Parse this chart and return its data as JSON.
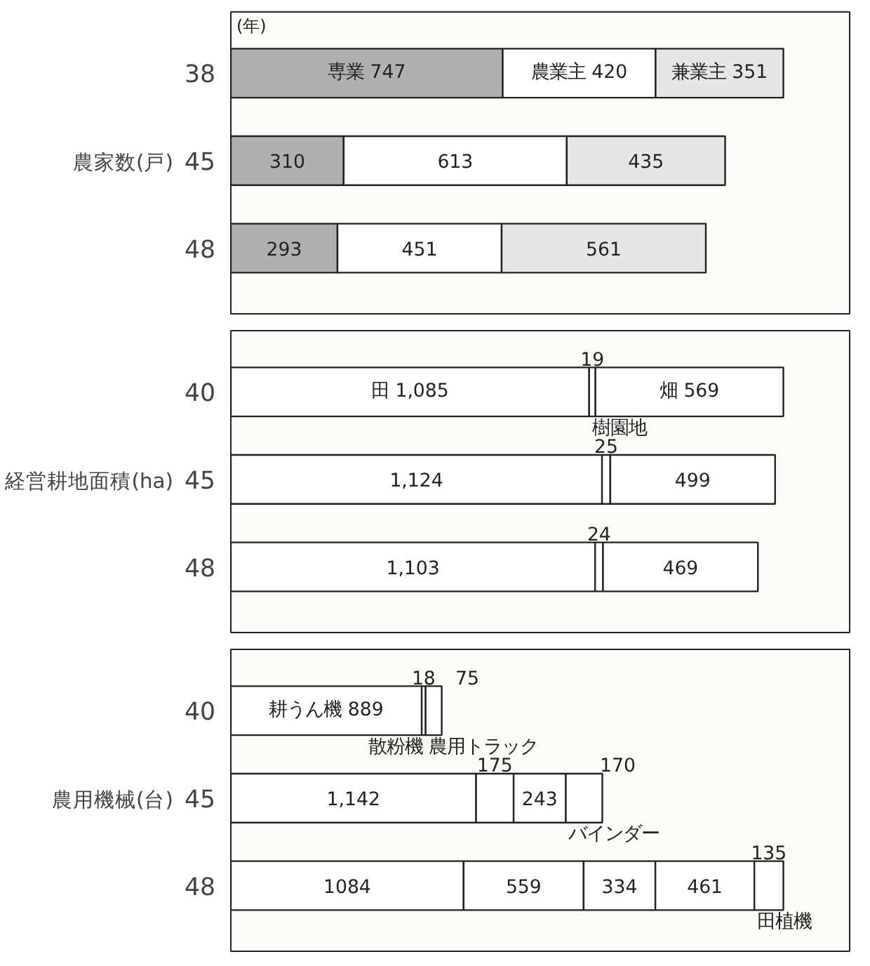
{
  "chart_data": [
    {
      "type": "bar",
      "orientation": "horizontal",
      "stacked": true,
      "ylabel": "農家数(戸)",
      "annotations": [
        "(年)"
      ],
      "categories": [
        "38",
        "45",
        "48"
      ],
      "series": [
        {
          "name": "専業",
          "color": "#b0b0b0",
          "values": [
            747,
            310,
            293
          ],
          "value_labels": [
            "747",
            "310",
            "293"
          ]
        },
        {
          "name": "農業主",
          "color": "#ffffff",
          "values": [
            420,
            613,
            451
          ],
          "value_labels": [
            "420",
            "613",
            "451"
          ]
        },
        {
          "name": "兼業主",
          "color": "#e6e6e6",
          "values": [
            351,
            435,
            561
          ],
          "value_labels": [
            "351",
            "435",
            "561"
          ]
        }
      ]
    },
    {
      "type": "bar",
      "orientation": "horizontal",
      "stacked": true,
      "ylabel": "経営耕地面積(ha)",
      "categories": [
        "40",
        "45",
        "48"
      ],
      "series": [
        {
          "name": "田",
          "color": "#ffffff",
          "values": [
            1085,
            1124,
            1103
          ],
          "value_labels": [
            "1,085",
            "1,124",
            "1,103"
          ]
        },
        {
          "name": "樹園地",
          "color": "#ffffff",
          "values": [
            19,
            25,
            24
          ],
          "value_labels": [
            "19",
            "25",
            "24"
          ]
        },
        {
          "name": "畑",
          "color": "#ffffff",
          "values": [
            569,
            499,
            469
          ],
          "value_labels": [
            "569",
            "499",
            "469"
          ]
        }
      ]
    },
    {
      "type": "bar",
      "orientation": "horizontal",
      "stacked": true,
      "ylabel": "農用機械(台)",
      "categories": [
        "40",
        "45",
        "48"
      ],
      "series": [
        {
          "name": "耕うん機",
          "color": "#ffffff",
          "values": [
            889,
            1142,
            1084
          ],
          "value_labels": [
            "889",
            "1,142",
            "1084"
          ]
        },
        {
          "name": "散粉機",
          "color": "#ffffff",
          "values": [
            18,
            175,
            559
          ],
          "value_labels": [
            "18",
            "175",
            "559"
          ]
        },
        {
          "name": "農用トラック",
          "color": "#ffffff",
          "values": [
            75,
            243,
            334
          ],
          "value_labels": [
            "75",
            "243",
            "334"
          ]
        },
        {
          "name": "バインダー",
          "color": "#ffffff",
          "values": [
            null,
            170,
            461
          ],
          "value_labels": [
            null,
            "170",
            "461"
          ]
        },
        {
          "name": "田植機",
          "color": "#ffffff",
          "values": [
            null,
            null,
            135
          ],
          "value_labels": [
            null,
            null,
            "135"
          ]
        }
      ]
    }
  ]
}
